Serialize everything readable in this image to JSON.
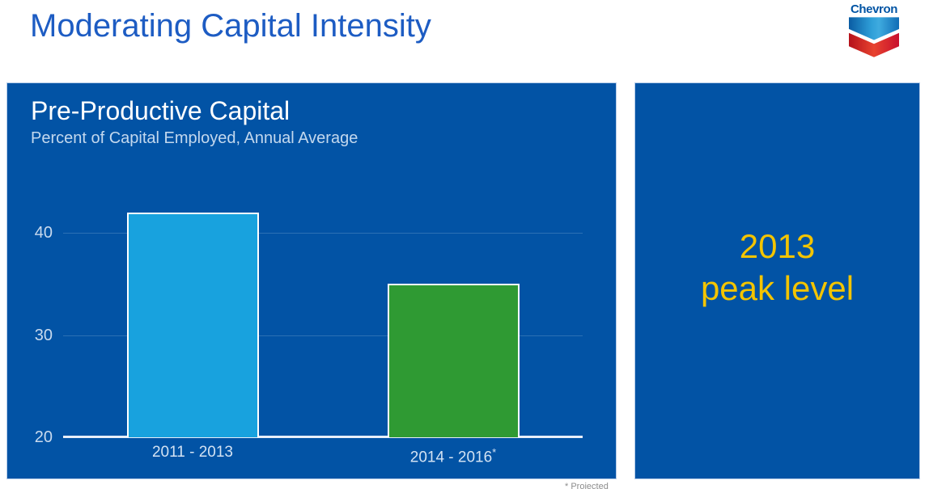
{
  "slide": {
    "title": "Moderating Capital Intensity"
  },
  "logo": {
    "company": "Chevron",
    "wordmark": "Chevron"
  },
  "chart_panel": {
    "title": "Pre-Productive Capital",
    "subtitle": "Percent of Capital Employed, Annual Average"
  },
  "chart_data": {
    "type": "bar",
    "title": "Pre-Productive Capital",
    "subtitle": "Percent of Capital Employed, Annual Average",
    "categories": [
      "2011 - 2013",
      "2014 - 2016*"
    ],
    "values": [
      42,
      35
    ],
    "bars": [
      {
        "label": "2011 - 2013",
        "sup": "",
        "value": 42,
        "color": "#18a2de"
      },
      {
        "label": "2014 - 2016",
        "sup": "*",
        "value": 35,
        "color": "#2f9a33"
      }
    ],
    "ylim": [
      20,
      44
    ],
    "yticks": [
      40,
      30,
      20
    ],
    "grid": true,
    "legend": false,
    "xlabel": "",
    "ylabel": ""
  },
  "callout_panel": {
    "line1": "2013",
    "line2": "peak level"
  },
  "footnote": {
    "text": "* Projected"
  },
  "colors": {
    "panel_blue": "#0253a5",
    "title_blue": "#1d5cc3",
    "bar_blue": "#18a2de",
    "bar_green": "#2f9a33",
    "callout_yellow": "#f3c400",
    "logo_blue": "#0054a4",
    "logo_red": "#c8102e"
  }
}
